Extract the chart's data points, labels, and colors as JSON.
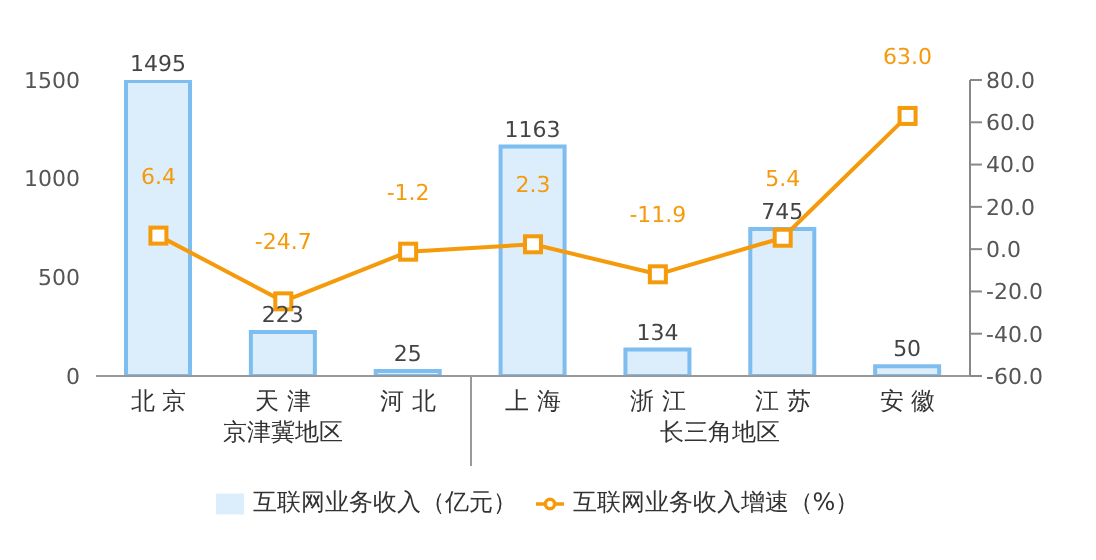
{
  "chart_data": {
    "type": "bar",
    "categories": [
      "北 京",
      "天 津",
      "河 北",
      "上 海",
      "浙 江",
      "江 苏",
      "安 徽"
    ],
    "series": [
      {
        "name": "互联网业务收入（亿元）",
        "color": "#dceefb",
        "values": [
          1495,
          223,
          25,
          1163,
          134,
          745,
          50
        ],
        "value_labels": [
          "1495",
          "223",
          "25",
          "1163",
          "134",
          "745",
          "50"
        ]
      },
      {
        "name": "互联网业务收入增速（%）",
        "type": "line",
        "axis": "y2",
        "color": "#f59a0a",
        "marker": "square",
        "values": [
          6.4,
          -24.7,
          -1.2,
          2.3,
          -11.9,
          5.4,
          63.0
        ],
        "value_labels": [
          "6.4",
          "-24.7",
          "-1.2",
          "2.3",
          "-11.9",
          "5.4",
          "63.0"
        ]
      }
    ],
    "ylim": [
      0,
      1500
    ],
    "yticks": [
      0,
      500,
      1000,
      1500
    ],
    "y2lim": [
      -60,
      80
    ],
    "y2ticks": [
      {
        "value": -60,
        "label": "-60.0"
      },
      {
        "value": -40,
        "label": "-40.0"
      },
      {
        "value": -20,
        "label": "-20.0"
      },
      {
        "value": 0,
        "label": "0.0"
      },
      {
        "value": 20,
        "label": "20.0"
      },
      {
        "value": 40,
        "label": "40.0"
      },
      {
        "value": 60,
        "label": "60.0"
      },
      {
        "value": 80,
        "label": "80.0"
      }
    ],
    "annotations": [
      "京津冀地区",
      "长三角地区"
    ],
    "legend": "bottom",
    "grid": false
  }
}
